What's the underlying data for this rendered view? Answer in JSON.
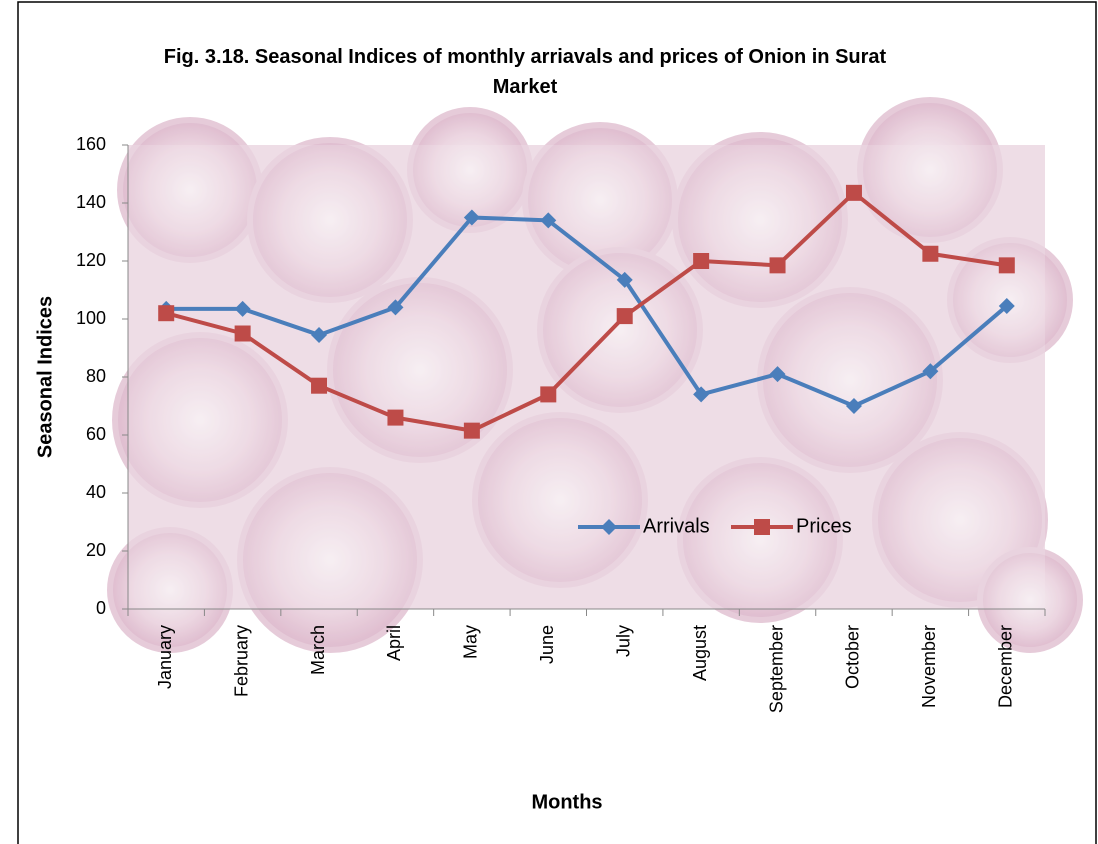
{
  "chart_data": {
    "type": "line",
    "title": "Fig. 3.18. Seasonal Indices of monthly arriavals  and prices of Onion in Surat Market",
    "x_label": "Months",
    "y_label": "Seasonal Indices",
    "categories": [
      "January",
      "February",
      "March",
      "April",
      "May",
      "June",
      "July",
      "August",
      "September",
      "October",
      "November",
      "December"
    ],
    "series": [
      {
        "name": "Arrivals",
        "color": "#4a7ebb",
        "marker": "diamond",
        "values": [
          103.5,
          103.5,
          94.5,
          104,
          135,
          134,
          113.5,
          74,
          81,
          70,
          82,
          104.5
        ]
      },
      {
        "name": "Prices",
        "color": "#be4b48",
        "marker": "square",
        "values": [
          102,
          95,
          77,
          66,
          61.5,
          74,
          101,
          120,
          118.5,
          143.5,
          122.5,
          118.5
        ]
      }
    ],
    "ylim": [
      0,
      160
    ],
    "yticks": [
      0,
      20,
      40,
      60,
      80,
      100,
      120,
      140,
      160
    ],
    "grid": false
  }
}
